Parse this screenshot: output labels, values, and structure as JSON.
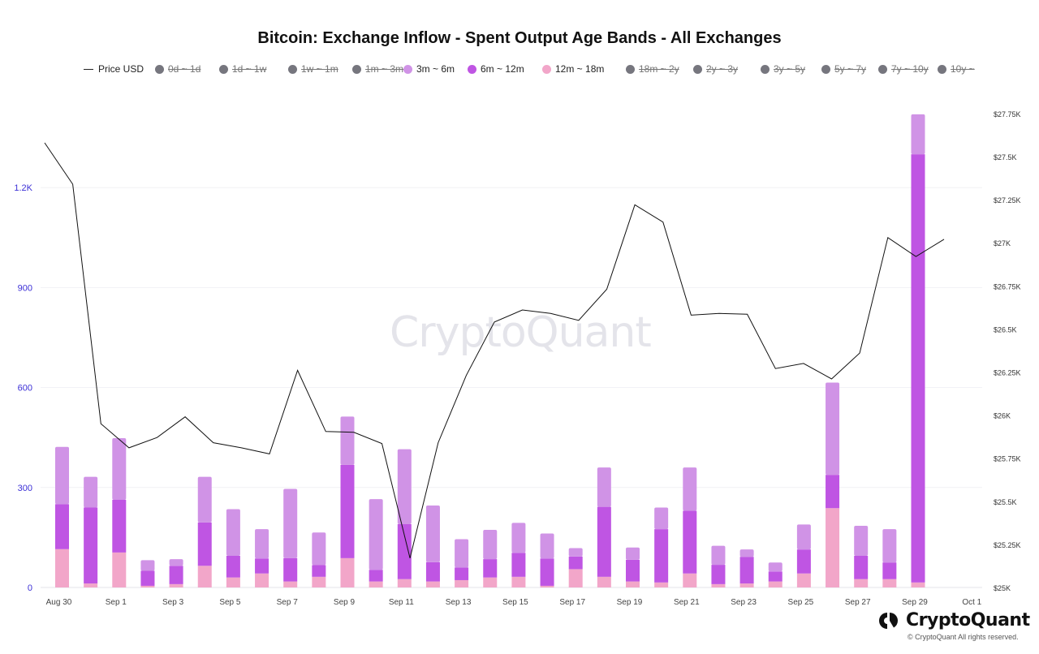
{
  "title": "Bitcoin: Exchange Inflow - Spent Output Age Bands - All Exchanges",
  "watermark": "CryptoQuant",
  "brand": "CryptoQuant",
  "copyright": "© CryptoQuant All rights reserved.",
  "legend": [
    {
      "label": "Price USD",
      "kind": "line",
      "active": true,
      "color": "#222222"
    },
    {
      "label": "0d ~ 1d",
      "kind": "dot",
      "active": false,
      "color": "#76767e"
    },
    {
      "label": "1d ~ 1w",
      "kind": "dot",
      "active": false,
      "color": "#76767e"
    },
    {
      "label": "1w ~ 1m",
      "kind": "dot",
      "active": false,
      "color": "#76767e"
    },
    {
      "label": "1m ~ 3m",
      "kind": "dot",
      "active": false,
      "color": "#76767e"
    },
    {
      "label": "3m ~ 6m",
      "kind": "dot",
      "active": true,
      "color": "#d093e6"
    },
    {
      "label": "6m ~ 12m",
      "kind": "dot",
      "active": true,
      "color": "#bf55e3"
    },
    {
      "label": "12m ~ 18m",
      "kind": "dot",
      "active": true,
      "color": "#f2a6c9"
    },
    {
      "label": "18m ~ 2y",
      "kind": "dot",
      "active": false,
      "color": "#76767e"
    },
    {
      "label": "2y ~ 3y",
      "kind": "dot",
      "active": false,
      "color": "#76767e"
    },
    {
      "label": "3y ~ 5y",
      "kind": "dot",
      "active": false,
      "color": "#76767e"
    },
    {
      "label": "5y ~ 7y",
      "kind": "dot",
      "active": false,
      "color": "#76767e"
    },
    {
      "label": "7y ~ 10y",
      "kind": "dot",
      "active": false,
      "color": "#76767e"
    },
    {
      "label": "10y ~",
      "kind": "dot",
      "active": false,
      "color": "#76767e"
    }
  ],
  "chart_data": {
    "type": "bar",
    "stacked": true,
    "x": [
      "Aug 30",
      "Aug 31",
      "Sep 1",
      "Sep 2",
      "Sep 3",
      "Sep 4",
      "Sep 5",
      "Sep 6",
      "Sep 7",
      "Sep 8",
      "Sep 9",
      "Sep 10",
      "Sep 11",
      "Sep 12",
      "Sep 13",
      "Sep 14",
      "Sep 15",
      "Sep 16",
      "Sep 17",
      "Sep 18",
      "Sep 19",
      "Sep 20",
      "Sep 21",
      "Sep 22",
      "Sep 23",
      "Sep 24",
      "Sep 25",
      "Sep 26",
      "Sep 27",
      "Sep 28",
      "Sep 29"
    ],
    "x_ticks": [
      "Aug 30",
      "Sep 1",
      "Sep 3",
      "Sep 5",
      "Sep 7",
      "Sep 9",
      "Sep 11",
      "Sep 13",
      "Sep 15",
      "Sep 17",
      "Sep 19",
      "Sep 21",
      "Sep 23",
      "Sep 25",
      "Sep 27",
      "Sep 29",
      "Oct 1"
    ],
    "series": [
      {
        "name": "12m ~ 18m",
        "color": "#f2a6c9",
        "values": [
          115,
          12,
          105,
          5,
          10,
          65,
          30,
          42,
          18,
          32,
          88,
          18,
          25,
          18,
          22,
          30,
          32,
          5,
          55,
          32,
          18,
          15,
          42,
          10,
          12,
          18,
          42,
          238,
          25,
          25,
          15
        ]
      },
      {
        "name": "6m ~ 12m",
        "color": "#bf55e3",
        "values": [
          135,
          228,
          158,
          45,
          55,
          130,
          65,
          45,
          70,
          35,
          280,
          35,
          165,
          58,
          38,
          55,
          72,
          82,
          38,
          210,
          65,
          160,
          188,
          58,
          80,
          30,
          72,
          100,
          70,
          50,
          1285
        ]
      },
      {
        "name": "3m ~ 6m",
        "color": "#d093e6",
        "values": [
          172,
          92,
          185,
          32,
          20,
          137,
          140,
          88,
          208,
          98,
          145,
          212,
          225,
          170,
          85,
          88,
          90,
          75,
          25,
          118,
          37,
          65,
          130,
          57,
          22,
          27,
          75,
          277,
          90,
          100,
          120
        ]
      }
    ],
    "price_series": {
      "name": "Price USD",
      "values": [
        27580,
        27340,
        25950,
        25810,
        25870,
        25990,
        25840,
        25810,
        25775,
        26260,
        25905,
        25900,
        25835,
        25170,
        25840,
        26230,
        26540,
        26610,
        26590,
        26550,
        26730,
        27220,
        27120,
        26580,
        26590,
        26585,
        26270,
        26300,
        26210,
        26360,
        27030,
        26920,
        27020
      ]
    },
    "ylabel_left": "",
    "ylabel_right": "",
    "ylim_left": [
      0,
      1500
    ],
    "yticks_left": [
      "0",
      "300",
      "600",
      "900",
      "1.2K"
    ],
    "ylim_right": [
      25000,
      27900
    ],
    "yticks_right": [
      "$25K",
      "$25.25K",
      "$25.5K",
      "$25.75K",
      "$26K",
      "$26.25K",
      "$26.5K",
      "$26.75K",
      "$27K",
      "$27.25K",
      "$27.5K",
      "$27.75K"
    ],
    "grid": true,
    "legend_position": "top"
  }
}
